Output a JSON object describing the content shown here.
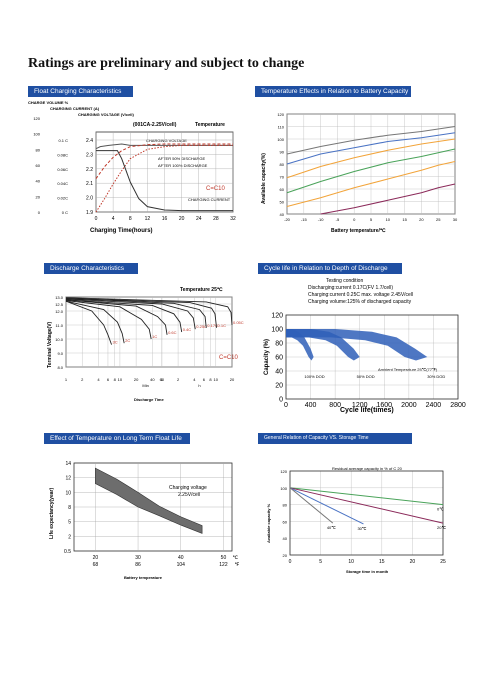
{
  "page": {
    "title": "Ratings are preliminary and subject to change"
  },
  "colors": {
    "header": "#1f4fa2",
    "orange": "#f2a43a",
    "green": "#4aa35a",
    "blue": "#4a73c4",
    "purple": "#8b2a5a",
    "gray": "#777777",
    "red": "#c0392b"
  },
  "float": {
    "header": "Float Charging Characteristics",
    "col_charge_volume": "CHARGE VOLUME %",
    "col_charging_current": "CHARGING CURRENT (A)",
    "col_charging_voltage": "CHARGING VOLTAGE (V/cell)",
    "condition": "(001CA-2.25V/cell)",
    "temp_label": "Temperature",
    "capacity_label": "C=C10",
    "xlabel": "Charging Time(hours)",
    "legend_charging_voltage": "CHARGING VOLTAGE",
    "legend_50": "AFTER 50% DISCHARGE",
    "legend_100": "AFTER 100% DISCHARGE",
    "legend_current": "CHARGING CURRENT"
  },
  "temp_effect": {
    "header": "Temperature Effects in Relation to Battery Capacity",
    "ylabel": "Available capacity(%)",
    "xlabel": "Battery temperature/℃"
  },
  "discharge": {
    "header": "Discharge Characteristics",
    "temp_label": "Temperature 25℃",
    "ylabel": "Terminal Voltage(V)",
    "xlabel": "Discharge Time",
    "capacity_label": "C=C10",
    "unit_min": "Min",
    "unit_h": "h"
  },
  "cycle": {
    "header": "Cycle life in Relation to Depth of Discharge",
    "cond_title": "Testing condition",
    "cond_1": "Discharging:current 0.17C(FV 1.7/cell)",
    "cond_2": "Charging:current 0.25C max. voltage 2.45V/cell",
    "cond_3": "Charging volume:125% of discharged capacity",
    "ylabel": "Capacity (%)",
    "xlabel": "Cycle life(times)",
    "label_100": "100% DOD",
    "label_50": "50% DOD",
    "label_30": "30% DOD",
    "ambient": "Ambient Temperature 25℃(77℉)"
  },
  "floatlife": {
    "header": "Effect of Temperature on Long Term Float Life",
    "ylabel": "Life expectancy(year)",
    "xlabel": "Battery temperature",
    "note_1": "Charging voltage",
    "note_2": "2.25V/cell",
    "unit_c": "℃",
    "unit_f": "℉"
  },
  "storage": {
    "header": "General Relation of Capacity VS. Storage Time",
    "top_title": "Residual average capacity in % of C 20",
    "ylabel": "Available capacity %",
    "xlabel": "Storage time in month"
  },
  "chart_data": [
    {
      "type": "line",
      "title": "Float Charging Characteristics",
      "xlabel": "Charging Time(hours)",
      "x_ticks": [
        0,
        4,
        8,
        12,
        16,
        20,
        24,
        28,
        32
      ],
      "xlim": [
        0,
        32
      ],
      "y_charge_volume_ticks": [
        120,
        100,
        80,
        60,
        40,
        20,
        0
      ],
      "y_current_ticks": [
        "0.1 C",
        "0.08C",
        "0.06C",
        "0.04C",
        "0.02C",
        "0 C"
      ],
      "y_voltage_ticks": [
        "2.4",
        "2.3",
        "2.2",
        "2.1",
        "2.0",
        "1.9"
      ],
      "series": [
        {
          "name": "CHARGING VOLTAGE",
          "x": [
            0,
            1,
            3,
            6,
            8,
            10,
            14,
            20,
            32
          ],
          "y": [
            95,
            98,
            100,
            102,
            100,
            100,
            100,
            100,
            100
          ]
        },
        {
          "name": "AFTER 50% DISCHARGE",
          "x": [
            0,
            2,
            4,
            6,
            8,
            12,
            16,
            20,
            32
          ],
          "y": [
            50,
            68,
            82,
            92,
            98,
            101,
            102,
            102,
            102
          ]
        },
        {
          "name": "AFTER 100% DISCHARGE",
          "x": [
            0,
            2,
            4,
            6,
            8,
            12,
            16,
            20,
            32
          ],
          "y": [
            0,
            20,
            42,
            62,
            80,
            94,
            98,
            100,
            100
          ]
        },
        {
          "name": "CHARGING CURRENT",
          "x": [
            0,
            5,
            6,
            8,
            10,
            12,
            16,
            20,
            32
          ],
          "y": [
            92,
            92,
            80,
            45,
            20,
            8,
            3,
            2,
            2
          ]
        }
      ]
    },
    {
      "type": "line",
      "title": "Temperature Effects in Relation to Battery Capacity",
      "xlabel": "Battery temperature/℃",
      "ylabel": "Available capacity/%",
      "x_ticks": [
        -20,
        -15,
        -10,
        -5,
        0,
        5,
        10,
        15,
        20,
        25,
        30
      ],
      "y_ticks": [
        40,
        50,
        60,
        70,
        80,
        90,
        100,
        110,
        120
      ],
      "xlim": [
        -20,
        30
      ],
      "ylim": [
        40,
        120
      ],
      "series": [
        {
          "name": "",
          "x": [
            -20,
            -10,
            0,
            10,
            20,
            25,
            30
          ],
          "y": [
            88,
            94,
            99,
            103,
            106,
            108,
            110
          ]
        },
        {
          "name": "",
          "x": [
            -20,
            -10,
            0,
            10,
            20,
            25,
            30
          ],
          "y": [
            80,
            88,
            93,
            98,
            101,
            103,
            105
          ]
        },
        {
          "name": "",
          "x": [
            -20,
            -10,
            0,
            10,
            20,
            25,
            30
          ],
          "y": [
            69,
            78,
            85,
            91,
            96,
            98,
            100
          ]
        },
        {
          "name": "",
          "x": [
            -20,
            -10,
            0,
            10,
            20,
            25,
            30
          ],
          "y": [
            57,
            66,
            74,
            81,
            86,
            89,
            92
          ]
        },
        {
          "name": "",
          "x": [
            -20,
            -10,
            0,
            10,
            20,
            25,
            30
          ],
          "y": [
            46,
            53,
            61,
            68,
            75,
            79,
            82
          ]
        },
        {
          "name": "",
          "x": [
            -10,
            0,
            10,
            20,
            25,
            30
          ],
          "y": [
            40,
            45,
            51,
            57,
            61,
            64
          ]
        }
      ]
    },
    {
      "type": "line",
      "title": "Discharge Characteristics",
      "xlabel": "Discharge Time",
      "ylabel": "Terminal Voltage(V)",
      "y_ticks": [
        8.0,
        9.0,
        10.0,
        11.0,
        12.0,
        12.5,
        13.0
      ],
      "ylim": [
        8.0,
        13.0
      ],
      "x_ticks_min": [
        "1",
        "2",
        "4",
        "6",
        "8",
        "10",
        "20",
        "40",
        "60"
      ],
      "x_ticks_h": [
        "1",
        "2",
        "4",
        "6",
        "8",
        "10",
        "20"
      ],
      "series": [
        {
          "name": "3C",
          "x": [
            1,
            3,
            5,
            6,
            7
          ],
          "y": [
            12.7,
            12.0,
            11.0,
            10.3,
            9.6
          ]
        },
        {
          "name": "2C",
          "x": [
            1,
            5,
            9,
            11,
            12
          ],
          "y": [
            12.7,
            12.1,
            11.2,
            10.4,
            9.7
          ]
        },
        {
          "name": "1C",
          "x": [
            1,
            10,
            25,
            35,
            38
          ],
          "y": [
            12.75,
            12.3,
            11.4,
            10.7,
            10.0
          ]
        },
        {
          "name": "0.6C",
          "x": [
            1,
            20,
            50,
            70,
            75
          ],
          "y": [
            12.8,
            12.35,
            11.6,
            11.0,
            10.3
          ]
        },
        {
          "name": "0.4C",
          "x": [
            1,
            40,
            100,
            130,
            140
          ],
          "y": [
            12.8,
            12.4,
            11.8,
            11.2,
            10.5
          ]
        },
        {
          "name": "0.25C",
          "x": [
            1,
            60,
            180,
            230,
            250
          ],
          "y": [
            12.85,
            12.5,
            12.0,
            11.5,
            10.7
          ]
        },
        {
          "name": "0.17C",
          "x": [
            1,
            100,
            300,
            380,
            400
          ],
          "y": [
            12.9,
            12.55,
            12.1,
            11.6,
            10.8
          ]
        },
        {
          "name": "0.1C",
          "x": [
            1,
            200,
            500,
            580,
            620
          ],
          "y": [
            12.9,
            12.6,
            12.2,
            11.8,
            10.8
          ]
        },
        {
          "name": "0.05C",
          "x": [
            1,
            400,
            1000,
            1150,
            1200
          ],
          "y": [
            12.95,
            12.65,
            12.3,
            11.9,
            11.0
          ]
        }
      ]
    },
    {
      "type": "area",
      "title": "Cycle life in Relation to Depth of Discharge",
      "xlabel": "Cycle life(times)",
      "ylabel": "Capacity (%)",
      "x_ticks": [
        0,
        400,
        800,
        1200,
        1600,
        2000,
        2400,
        2800
      ],
      "y_ticks": [
        0,
        20,
        40,
        60,
        80,
        100,
        120
      ],
      "xlim": [
        0,
        2800
      ],
      "ylim": [
        0,
        120
      ],
      "series": [
        {
          "name": "100% DOD",
          "x": [
            0,
            100,
            200,
            300,
            400,
            450
          ],
          "y": [
            100,
            100,
            96,
            88,
            72,
            60
          ]
        },
        {
          "name": "50% DOD",
          "x": [
            0,
            400,
            700,
            900,
            1100,
            1200
          ],
          "y": [
            100,
            100,
            96,
            88,
            72,
            60
          ]
        },
        {
          "name": "30% DOD",
          "x": [
            0,
            800,
            1400,
            1800,
            2100,
            2300
          ],
          "y": [
            100,
            100,
            96,
            88,
            72,
            60
          ]
        }
      ]
    },
    {
      "type": "area",
      "title": "Effect of Temperature on Long Term Float Life",
      "xlabel": "Battery temperature",
      "ylabel": "Life expectancy(year)",
      "x_ticks_c": [
        20,
        30,
        40,
        50
      ],
      "x_ticks_f": [
        68,
        86,
        104,
        122
      ],
      "y_ticks": [
        0.5,
        2,
        5,
        8,
        10,
        12,
        14
      ],
      "series": [
        {
          "name": "upper",
          "x": [
            20,
            25,
            30,
            35,
            40,
            45
          ],
          "y": [
            13.3,
            11.8,
            10.0,
            8.1,
            6.0,
            4.2
          ]
        },
        {
          "name": "lower",
          "x": [
            20,
            25,
            30,
            35,
            40,
            45
          ],
          "y": [
            11.2,
            9.7,
            8.0,
            6.2,
            4.3,
            2.6
          ]
        }
      ]
    },
    {
      "type": "line",
      "title": "General Relation of Capacity VS. Storage Time",
      "xlabel": "Storage time in month",
      "ylabel": "Available capacity %",
      "x_ticks": [
        0,
        5,
        10,
        15,
        20,
        25
      ],
      "y_ticks": [
        20,
        40,
        60,
        80,
        100,
        120
      ],
      "xlim": [
        0,
        25
      ],
      "ylim": [
        20,
        120
      ],
      "series": [
        {
          "name": "0℃",
          "x": [
            0,
            25
          ],
          "y": [
            100,
            80
          ]
        },
        {
          "name": "20℃",
          "x": [
            0,
            25
          ],
          "y": [
            100,
            58
          ]
        },
        {
          "name": "30℃",
          "x": [
            0,
            12
          ],
          "y": [
            100,
            57
          ]
        },
        {
          "name": "40℃",
          "x": [
            0,
            7
          ],
          "y": [
            100,
            58
          ]
        }
      ]
    }
  ]
}
